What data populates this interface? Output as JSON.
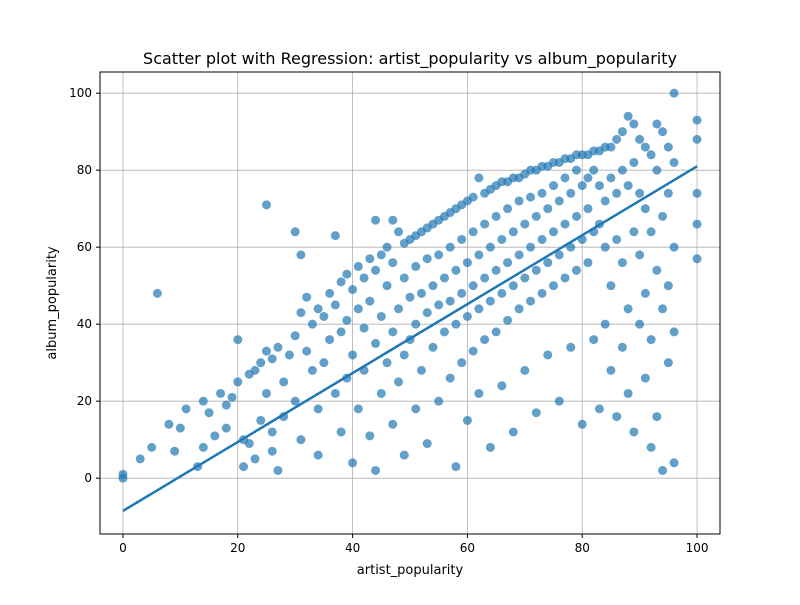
{
  "chart_data": {
    "type": "scatter",
    "title": "Scatter plot with Regression: artist_popularity vs album_popularity",
    "xlabel": "artist_popularity",
    "ylabel": "album_popularity",
    "xlim": [
      -4,
      104
    ],
    "ylim": [
      -14.5,
      105.5
    ],
    "x_ticks": [
      0,
      20,
      40,
      60,
      80,
      100
    ],
    "y_ticks": [
      0,
      20,
      40,
      60,
      80,
      100
    ],
    "grid": true,
    "legend": "none",
    "point_color": "#1f77b4",
    "regression_line": {
      "x": [
        0,
        100
      ],
      "y": [
        -8.5,
        81
      ]
    },
    "series": [
      {
        "points": [
          [
            0,
            0
          ],
          [
            0,
            1
          ],
          [
            3,
            5
          ],
          [
            5,
            8
          ],
          [
            6,
            48
          ],
          [
            8,
            14
          ],
          [
            9,
            7
          ],
          [
            10,
            13
          ],
          [
            11,
            18
          ],
          [
            13,
            3
          ],
          [
            14,
            20
          ],
          [
            14,
            8
          ],
          [
            15,
            17
          ],
          [
            16,
            11
          ],
          [
            17,
            22
          ],
          [
            18,
            19
          ],
          [
            18,
            13
          ],
          [
            19,
            21
          ],
          [
            20,
            36
          ],
          [
            20,
            25
          ],
          [
            21,
            10
          ],
          [
            21,
            3
          ],
          [
            22,
            27
          ],
          [
            22,
            9
          ],
          [
            23,
            28
          ],
          [
            23,
            5
          ],
          [
            24,
            30
          ],
          [
            24,
            15
          ],
          [
            25,
            71
          ],
          [
            25,
            33
          ],
          [
            25,
            22
          ],
          [
            26,
            31
          ],
          [
            26,
            12
          ],
          [
            26,
            7
          ],
          [
            27,
            34
          ],
          [
            27,
            2
          ],
          [
            28,
            16
          ],
          [
            28,
            25
          ],
          [
            29,
            32
          ],
          [
            30,
            64
          ],
          [
            30,
            37
          ],
          [
            30,
            20
          ],
          [
            31,
            58
          ],
          [
            31,
            43
          ],
          [
            31,
            10
          ],
          [
            32,
            47
          ],
          [
            32,
            33
          ],
          [
            33,
            40
          ],
          [
            33,
            28
          ],
          [
            34,
            44
          ],
          [
            34,
            18
          ],
          [
            34,
            6
          ],
          [
            35,
            42
          ],
          [
            35,
            30
          ],
          [
            36,
            48
          ],
          [
            36,
            36
          ],
          [
            37,
            63
          ],
          [
            37,
            45
          ],
          [
            37,
            22
          ],
          [
            38,
            51
          ],
          [
            38,
            38
          ],
          [
            38,
            12
          ],
          [
            39,
            53
          ],
          [
            39,
            41
          ],
          [
            39,
            26
          ],
          [
            40,
            49
          ],
          [
            40,
            32
          ],
          [
            40,
            4
          ],
          [
            41,
            55
          ],
          [
            41,
            44
          ],
          [
            41,
            18
          ],
          [
            42,
            52
          ],
          [
            42,
            39
          ],
          [
            42,
            28
          ],
          [
            43,
            57
          ],
          [
            43,
            46
          ],
          [
            43,
            11
          ],
          [
            44,
            67
          ],
          [
            44,
            54
          ],
          [
            44,
            35
          ],
          [
            44,
            2
          ],
          [
            45,
            58
          ],
          [
            45,
            42
          ],
          [
            45,
            22
          ],
          [
            46,
            60
          ],
          [
            46,
            50
          ],
          [
            46,
            30
          ],
          [
            47,
            67
          ],
          [
            47,
            56
          ],
          [
            47,
            38
          ],
          [
            47,
            14
          ],
          [
            48,
            64
          ],
          [
            48,
            44
          ],
          [
            48,
            25
          ],
          [
            49,
            61
          ],
          [
            49,
            52
          ],
          [
            49,
            32
          ],
          [
            49,
            6
          ],
          [
            50,
            62
          ],
          [
            50,
            47
          ],
          [
            50,
            36
          ],
          [
            51,
            63
          ],
          [
            51,
            55
          ],
          [
            51,
            40
          ],
          [
            51,
            18
          ],
          [
            52,
            64
          ],
          [
            52,
            48
          ],
          [
            52,
            28
          ],
          [
            53,
            65
          ],
          [
            53,
            57
          ],
          [
            53,
            43
          ],
          [
            53,
            9
          ],
          [
            54,
            66
          ],
          [
            54,
            50
          ],
          [
            54,
            34
          ],
          [
            55,
            67
          ],
          [
            55,
            58
          ],
          [
            55,
            45
          ],
          [
            55,
            20
          ],
          [
            56,
            68
          ],
          [
            56,
            52
          ],
          [
            56,
            38
          ],
          [
            57,
            69
          ],
          [
            57,
            60
          ],
          [
            57,
            46
          ],
          [
            57,
            26
          ],
          [
            58,
            70
          ],
          [
            58,
            54
          ],
          [
            58,
            40
          ],
          [
            58,
            3
          ],
          [
            59,
            71
          ],
          [
            59,
            62
          ],
          [
            59,
            48
          ],
          [
            59,
            30
          ],
          [
            60,
            72
          ],
          [
            60,
            56
          ],
          [
            60,
            42
          ],
          [
            60,
            15
          ],
          [
            61,
            73
          ],
          [
            61,
            64
          ],
          [
            61,
            50
          ],
          [
            61,
            33
          ],
          [
            62,
            78
          ],
          [
            62,
            58
          ],
          [
            62,
            44
          ],
          [
            62,
            22
          ],
          [
            63,
            74
          ],
          [
            63,
            66
          ],
          [
            63,
            52
          ],
          [
            63,
            36
          ],
          [
            64,
            75
          ],
          [
            64,
            60
          ],
          [
            64,
            46
          ],
          [
            64,
            8
          ],
          [
            65,
            76
          ],
          [
            65,
            68
          ],
          [
            65,
            54
          ],
          [
            65,
            38
          ],
          [
            66,
            77
          ],
          [
            66,
            62
          ],
          [
            66,
            48
          ],
          [
            66,
            24
          ],
          [
            67,
            77
          ],
          [
            67,
            70
          ],
          [
            67,
            56
          ],
          [
            67,
            41
          ],
          [
            68,
            78
          ],
          [
            68,
            64
          ],
          [
            68,
            50
          ],
          [
            68,
            12
          ],
          [
            69,
            78
          ],
          [
            69,
            72
          ],
          [
            69,
            58
          ],
          [
            69,
            44
          ],
          [
            70,
            79
          ],
          [
            70,
            66
          ],
          [
            70,
            52
          ],
          [
            70,
            28
          ],
          [
            71,
            80
          ],
          [
            71,
            73
          ],
          [
            71,
            60
          ],
          [
            71,
            46
          ],
          [
            72,
            80
          ],
          [
            72,
            68
          ],
          [
            72,
            54
          ],
          [
            72,
            17
          ],
          [
            73,
            81
          ],
          [
            73,
            74
          ],
          [
            73,
            62
          ],
          [
            73,
            48
          ],
          [
            74,
            81
          ],
          [
            74,
            70
          ],
          [
            74,
            56
          ],
          [
            74,
            32
          ],
          [
            75,
            82
          ],
          [
            75,
            76
          ],
          [
            75,
            64
          ],
          [
            75,
            50
          ],
          [
            76,
            82
          ],
          [
            76,
            72
          ],
          [
            76,
            58
          ],
          [
            76,
            20
          ],
          [
            77,
            83
          ],
          [
            77,
            78
          ],
          [
            77,
            66
          ],
          [
            77,
            52
          ],
          [
            78,
            83
          ],
          [
            78,
            74
          ],
          [
            78,
            60
          ],
          [
            78,
            34
          ],
          [
            79,
            84
          ],
          [
            79,
            80
          ],
          [
            79,
            68
          ],
          [
            79,
            54
          ],
          [
            80,
            84
          ],
          [
            80,
            76
          ],
          [
            80,
            62
          ],
          [
            80,
            14
          ],
          [
            81,
            84
          ],
          [
            81,
            78
          ],
          [
            81,
            70
          ],
          [
            81,
            56
          ],
          [
            82,
            85
          ],
          [
            82,
            80
          ],
          [
            82,
            64
          ],
          [
            82,
            36
          ],
          [
            83,
            85
          ],
          [
            83,
            76
          ],
          [
            83,
            66
          ],
          [
            83,
            18
          ],
          [
            84,
            86
          ],
          [
            84,
            72
          ],
          [
            84,
            60
          ],
          [
            84,
            40
          ],
          [
            85,
            86
          ],
          [
            85,
            78
          ],
          [
            85,
            50
          ],
          [
            85,
            28
          ],
          [
            86,
            88
          ],
          [
            86,
            74
          ],
          [
            86,
            62
          ],
          [
            86,
            16
          ],
          [
            87,
            90
          ],
          [
            87,
            80
          ],
          [
            87,
            56
          ],
          [
            87,
            34
          ],
          [
            88,
            94
          ],
          [
            88,
            76
          ],
          [
            88,
            44
          ],
          [
            88,
            22
          ],
          [
            89,
            92
          ],
          [
            89,
            82
          ],
          [
            89,
            64
          ],
          [
            89,
            12
          ],
          [
            90,
            88
          ],
          [
            90,
            74
          ],
          [
            90,
            58
          ],
          [
            90,
            40
          ],
          [
            91,
            86
          ],
          [
            91,
            70
          ],
          [
            91,
            48
          ],
          [
            91,
            26
          ],
          [
            92,
            84
          ],
          [
            92,
            64
          ],
          [
            92,
            36
          ],
          [
            92,
            8
          ],
          [
            93,
            92
          ],
          [
            93,
            80
          ],
          [
            93,
            54
          ],
          [
            93,
            16
          ],
          [
            94,
            90
          ],
          [
            94,
            68
          ],
          [
            94,
            44
          ],
          [
            94,
            2
          ],
          [
            95,
            86
          ],
          [
            95,
            74
          ],
          [
            95,
            50
          ],
          [
            95,
            30
          ],
          [
            96,
            100
          ],
          [
            96,
            82
          ],
          [
            96,
            60
          ],
          [
            96,
            38
          ],
          [
            96,
            4
          ],
          [
            100,
            93
          ],
          [
            100,
            88
          ],
          [
            100,
            74
          ],
          [
            100,
            66
          ],
          [
            100,
            57
          ]
        ]
      }
    ]
  }
}
